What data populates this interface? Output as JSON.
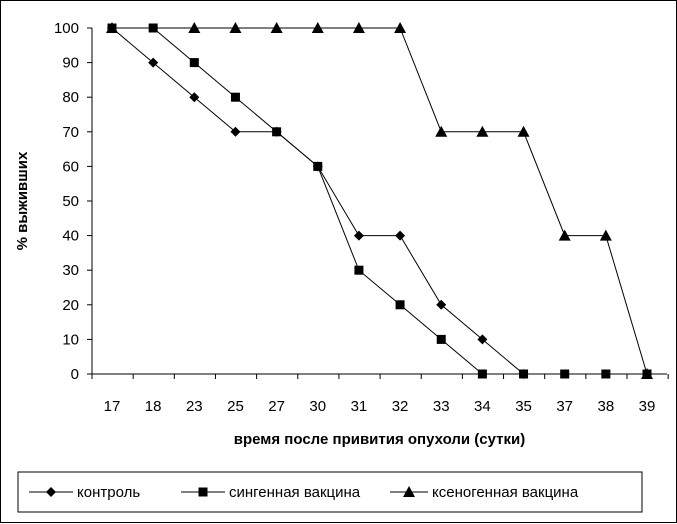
{
  "chart_data": {
    "type": "line",
    "title": "",
    "xlabel": "время после привития опухоли (сутки)",
    "ylabel": "% выживших",
    "ylim": [
      0,
      100
    ],
    "yticks": [
      0,
      10,
      20,
      30,
      40,
      50,
      60,
      70,
      80,
      90,
      100
    ],
    "categories": [
      "17",
      "18",
      "23",
      "25",
      "27",
      "30",
      "31",
      "32",
      "33",
      "34",
      "35",
      "37",
      "38",
      "39"
    ],
    "grid": false,
    "legend_position": "bottom",
    "series": [
      {
        "name": "контроль",
        "marker": "diamond",
        "color": "#000000",
        "points": [
          [
            0,
            100
          ],
          [
            1,
            90
          ],
          [
            2,
            80
          ],
          [
            3,
            70
          ],
          [
            4,
            70
          ],
          [
            5,
            60
          ],
          [
            6,
            40
          ],
          [
            7,
            40
          ],
          [
            8,
            20
          ],
          [
            9,
            10
          ],
          [
            10,
            0
          ]
        ]
      },
      {
        "name": "сингенная вакцина",
        "marker": "square",
        "color": "#000000",
        "points": [
          [
            0,
            100
          ],
          [
            1,
            100
          ],
          [
            2,
            90
          ],
          [
            3,
            80
          ],
          [
            4,
            70
          ],
          [
            5,
            60
          ],
          [
            6,
            30
          ],
          [
            7,
            20
          ],
          [
            8,
            10
          ],
          [
            9,
            0
          ],
          [
            10,
            0
          ],
          [
            11,
            0
          ],
          [
            12,
            0
          ],
          [
            13,
            0
          ]
        ]
      },
      {
        "name": "ксеногенная вакцина",
        "marker": "triangle",
        "color": "#000000",
        "points": [
          [
            0,
            100
          ],
          [
            2,
            100
          ],
          [
            3,
            100
          ],
          [
            4,
            100
          ],
          [
            5,
            100
          ],
          [
            6,
            100
          ],
          [
            7,
            100
          ],
          [
            8,
            70
          ],
          [
            9,
            70
          ],
          [
            10,
            70
          ],
          [
            11,
            40
          ],
          [
            12,
            40
          ],
          [
            13,
            0
          ]
        ]
      }
    ]
  }
}
